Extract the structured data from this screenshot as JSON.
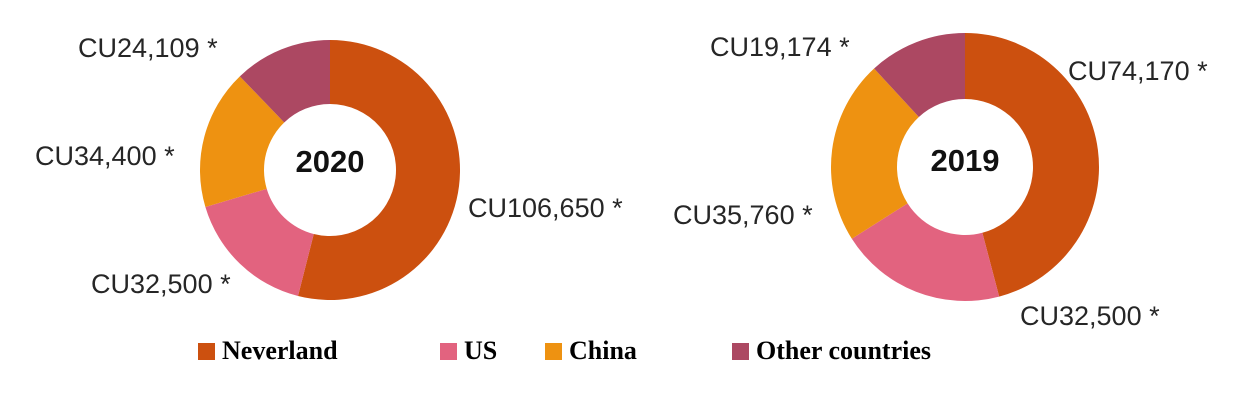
{
  "canvas": {
    "background": "#ffffff"
  },
  "colors": {
    "neverland": "#cc500f",
    "us": "#e2637f",
    "china": "#ee9211",
    "other": "#ac4862"
  },
  "legend": {
    "position": "bottom",
    "items": [
      {
        "label": "Neverland",
        "color": "#cc500f"
      },
      {
        "label": "US",
        "color": "#e2637f"
      },
      {
        "label": "China",
        "color": "#ee9211"
      },
      {
        "label": "Other countries",
        "color": "#ac4862"
      }
    ]
  },
  "chart_data": [
    {
      "type": "pie",
      "subtype": "donut",
      "center_label": "2020",
      "categories": [
        "Neverland",
        "US",
        "China",
        "Other countries"
      ],
      "values": [
        106650,
        32500,
        34400,
        24109
      ],
      "labels": [
        "CU106,650 *",
        "CU32,500 *",
        "CU34,400 *",
        "CU24,109 *"
      ],
      "colors": [
        "#cc500f",
        "#e2637f",
        "#ee9211",
        "#ac4862"
      ],
      "start_angle_deg_from_top": 0,
      "direction": "clockwise",
      "legend_position": "bottom"
    },
    {
      "type": "pie",
      "subtype": "donut",
      "center_label": "2019",
      "categories": [
        "Neverland",
        "US",
        "China",
        "Other countries"
      ],
      "values": [
        74170,
        32500,
        35760,
        19174
      ],
      "labels": [
        "CU74,170 *",
        "CU32,500 *",
        "CU35,760 *",
        "CU19,174 *"
      ],
      "colors": [
        "#cc500f",
        "#e2637f",
        "#ee9211",
        "#ac4862"
      ],
      "start_angle_deg_from_top": 0,
      "direction": "clockwise",
      "legend_position": "bottom"
    }
  ]
}
